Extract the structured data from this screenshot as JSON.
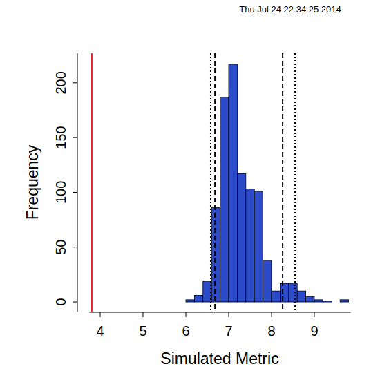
{
  "chart_data": {
    "type": "histogram",
    "title": "Thu Jul 24 22:34:25 2014",
    "xlabel": "Simulated Metric",
    "ylabel": "Frequency",
    "bins": [
      6.0,
      6.2,
      6.4,
      6.6,
      6.8,
      7.0,
      7.2,
      7.4,
      7.6,
      7.8,
      8.0,
      8.2,
      8.4,
      8.6,
      8.8,
      9.0,
      9.2,
      9.4,
      9.6,
      9.8
    ],
    "values": [
      2,
      6,
      19,
      86,
      187,
      217,
      117,
      103,
      101,
      38,
      10,
      17,
      17,
      10,
      5,
      2,
      1,
      0,
      2
    ],
    "color": "#2b4bc8",
    "xlim": [
      3.75,
      9.85
    ],
    "ylim": [
      -9,
      227
    ],
    "xticks": [
      4,
      5,
      6,
      7,
      8,
      9
    ],
    "yticks": [
      0,
      50,
      100,
      150,
      200
    ],
    "vlines": [
      {
        "value": 3.8,
        "color": "#e8191f",
        "line_style": "solid"
      },
      {
        "value": 6.58,
        "color": "#000000",
        "line_style": "dotted"
      },
      {
        "value": 6.68,
        "color": "#000000",
        "line_style": "dashed"
      },
      {
        "value": 8.26,
        "color": "#000000",
        "line_style": "dashed"
      },
      {
        "value": 8.55,
        "color": "#000000",
        "line_style": "dotted"
      }
    ]
  }
}
